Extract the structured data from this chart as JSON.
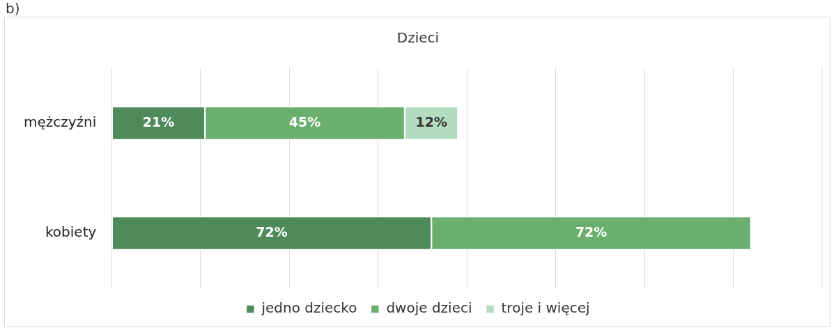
{
  "chart_data": {
    "type": "bar",
    "orientation": "horizontal",
    "stacked": true,
    "title": "Dzieci",
    "annotations": [
      "b)"
    ],
    "categories": [
      "mężczyźni",
      "kobiety"
    ],
    "series": [
      {
        "name": "jedno dziecko",
        "color": "#4f8a5b",
        "values": [
          21,
          72
        ],
        "value_labels": [
          "21%",
          "72%"
        ]
      },
      {
        "name": "dwoje dzieci",
        "color": "#6aaf6e",
        "values": [
          45,
          72
        ],
        "value_labels": [
          "45%",
          "72%"
        ]
      },
      {
        "name": "troje i więcej",
        "color": "#b4dcc0",
        "values": [
          12,
          null
        ],
        "value_labels": [
          "12%",
          null
        ]
      }
    ],
    "xlim": [
      0,
      160
    ],
    "xticks": [
      0,
      20,
      40,
      60,
      80,
      100,
      120,
      140
    ],
    "grid": "x",
    "tick_labels": "y",
    "legend": "bottom"
  }
}
